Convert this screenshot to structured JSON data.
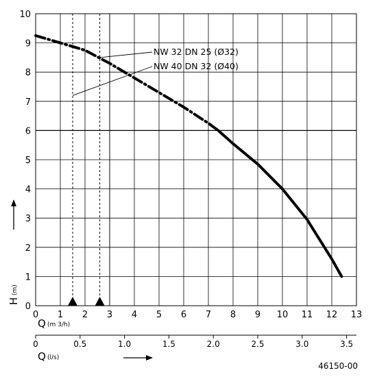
{
  "chart_data": {
    "type": "line",
    "title": "",
    "xlabel": "Q",
    "xlabel_unit": "(m 3/h)",
    "ylabel": "H",
    "ylabel_unit": "(m)",
    "secondary_xlabel": "Q",
    "secondary_xlabel_unit": "(l/s)",
    "xlim": [
      0,
      13
    ],
    "ylim": [
      0,
      10
    ],
    "secondary_xlim": [
      0,
      3.611
    ],
    "grid": true,
    "x_ticks": [
      "0",
      "1",
      "2",
      "3",
      "4",
      "5",
      "6",
      "7",
      "8",
      "9",
      "10",
      "11",
      "12",
      "13"
    ],
    "y_ticks": [
      "0",
      "1",
      "2",
      "3",
      "4",
      "5",
      "6",
      "7",
      "8",
      "9",
      "10"
    ],
    "secondary_x_ticks": [
      {
        "value": 0,
        "label": "0"
      },
      {
        "value": 0.5,
        "label": "0.5"
      },
      {
        "value": 1.0,
        "label": "1.0"
      },
      {
        "value": 1.5,
        "label": "1.5"
      },
      {
        "value": 2.0,
        "label": "2.0"
      },
      {
        "value": 2.5,
        "label": "2.5"
      },
      {
        "value": 3.0,
        "label": "3.0"
      },
      {
        "value": 3.5,
        "label": "3.5"
      }
    ],
    "series": [
      {
        "style": "dash-dot",
        "x": [
          0,
          1,
          2,
          3,
          4,
          5,
          6,
          7,
          7.4
        ],
        "y": [
          9.25,
          9.0,
          8.75,
          8.3,
          7.8,
          7.3,
          6.8,
          6.25,
          6.0
        ]
      },
      {
        "style": "solid",
        "x": [
          7.4,
          8,
          9,
          10,
          11,
          12,
          12.4
        ],
        "y": [
          6.0,
          5.55,
          4.85,
          4.0,
          2.95,
          1.6,
          1.0
        ]
      }
    ],
    "reference_lines_x": [
      1.5,
      2.6
    ],
    "reference_markers_x": [
      1.5,
      2.6
    ],
    "extra_grid_x": [
      3.0
    ],
    "annotations": [
      {
        "text": "NW 32   DN 25 (Ø32)",
        "points_to": {
          "x": 2.6,
          "y": 8.5
        }
      },
      {
        "text": "NW 40   DN 32 (Ø40)",
        "points_to": {
          "x": 1.5,
          "y": 7.2
        }
      }
    ],
    "reference_code": "46150-00"
  }
}
